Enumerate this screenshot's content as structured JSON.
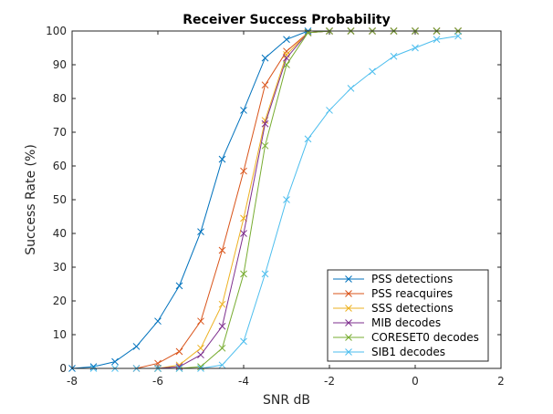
{
  "chart_data": {
    "type": "line",
    "title": "Receiver Success Probability",
    "xlabel": "SNR dB",
    "ylabel": "Success Rate (%)",
    "xlim": [
      -8,
      2
    ],
    "ylim": [
      0,
      100
    ],
    "xticks": [
      -8,
      -6,
      -4,
      -2,
      0,
      2
    ],
    "yticks": [
      0,
      10,
      20,
      30,
      40,
      50,
      60,
      70,
      80,
      90,
      100
    ],
    "grid": false,
    "legend_position": "bottom-right",
    "marker": "x",
    "series": [
      {
        "name": "PSS  detections",
        "color": "#0072bd",
        "x": [
          -8,
          -7.5,
          -7,
          -6.5,
          -6,
          -5.5,
          -5,
          -4.5,
          -4,
          -3.5,
          -3,
          -2.5,
          -2,
          -1.5,
          -1,
          -0.5,
          0,
          0.5,
          1
        ],
        "y": [
          0,
          0.5,
          2,
          6.5,
          14,
          24.5,
          40.5,
          62,
          76.5,
          92,
          97.5,
          100,
          100,
          100,
          100,
          100,
          100,
          100,
          100
        ]
      },
      {
        "name": "PSS  reacquires",
        "color": "#d95319",
        "x": [
          -6.5,
          -6,
          -5.5,
          -5,
          -4.5,
          -4,
          -3.5,
          -3,
          -2.5,
          -2,
          -1.5,
          -1,
          -0.5,
          0,
          0.5,
          1
        ],
        "y": [
          0,
          1.5,
          5,
          14,
          35,
          58.5,
          84,
          94,
          99.5,
          100,
          100,
          100,
          100,
          100,
          100,
          100
        ]
      },
      {
        "name": "SSS detections",
        "color": "#edb120",
        "x": [
          -6,
          -5.5,
          -5,
          -4.5,
          -4,
          -3.5,
          -3,
          -2.5,
          -2,
          -1.5,
          -1,
          -0.5,
          0,
          0.5,
          1
        ],
        "y": [
          0,
          1,
          6,
          19,
          44.5,
          73.5,
          93,
          99.5,
          100,
          100,
          100,
          100,
          100,
          100,
          100
        ]
      },
      {
        "name": "MIB decodes",
        "color": "#7e2f8e",
        "x": [
          -6,
          -5.5,
          -5,
          -4.5,
          -4,
          -3.5,
          -3,
          -2.5,
          -2,
          -1.5,
          -1,
          -0.5,
          0,
          0.5,
          1
        ],
        "y": [
          0,
          0.5,
          4,
          12.5,
          40,
          72.5,
          92,
          99.5,
          100,
          100,
          100,
          100,
          100,
          100,
          100
        ]
      },
      {
        "name": "CORESET0 decodes",
        "color": "#77ac30",
        "x": [
          -6,
          -5.5,
          -5,
          -4.5,
          -4,
          -3.5,
          -3,
          -2.5,
          -2,
          -1.5,
          -1,
          -0.5,
          0,
          0.5,
          1
        ],
        "y": [
          0,
          0,
          0.5,
          6,
          28,
          66,
          90,
          99.5,
          100,
          100,
          100,
          100,
          100,
          100,
          100
        ]
      },
      {
        "name": "SIB1 decodes",
        "color": "#4dbeee",
        "x": [
          -7.5,
          -7,
          -6.5,
          -6,
          -5.5,
          -5,
          -4.5,
          -4,
          -3.5,
          -3,
          -2.5,
          -2,
          -1.5,
          -1,
          -0.5,
          0,
          0.5,
          1
        ],
        "y": [
          0,
          0,
          0,
          0,
          0,
          0,
          1,
          8,
          28,
          50,
          68,
          76.5,
          83,
          88,
          92.5,
          95,
          97.5,
          98.5
        ]
      }
    ]
  }
}
